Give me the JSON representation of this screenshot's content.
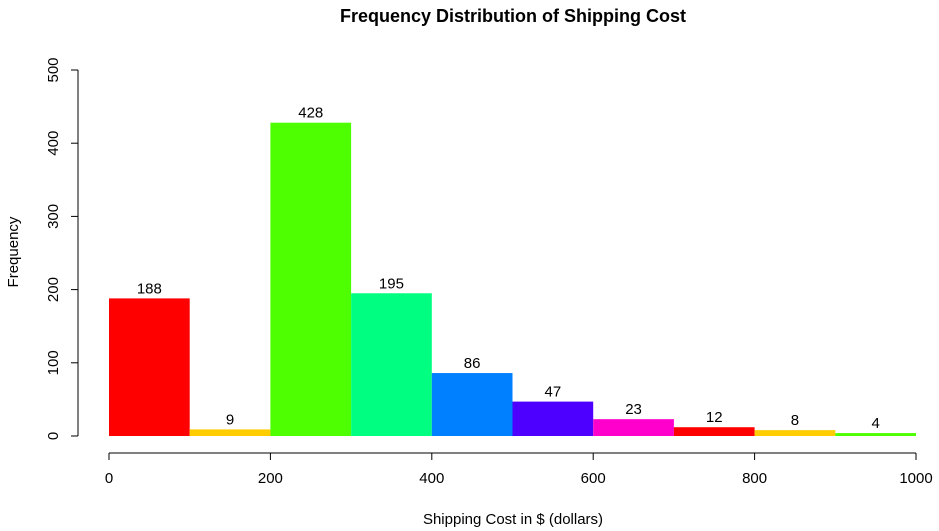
{
  "chart_data": {
    "type": "bar",
    "title": "Frequency Distribution of Shipping Cost",
    "xlabel": "Shipping Cost in $ (dollars)",
    "ylabel": "Frequency",
    "bins": [
      {
        "start": 0,
        "end": 100,
        "value": 188,
        "color": "#FF0000"
      },
      {
        "start": 100,
        "end": 200,
        "value": 9,
        "color": "#FFCC00"
      },
      {
        "start": 200,
        "end": 300,
        "value": 428,
        "color": "#4DFF00"
      },
      {
        "start": 300,
        "end": 400,
        "value": 195,
        "color": "#00FF80"
      },
      {
        "start": 400,
        "end": 500,
        "value": 86,
        "color": "#0080FF"
      },
      {
        "start": 500,
        "end": 600,
        "value": 47,
        "color": "#4D00FF"
      },
      {
        "start": 600,
        "end": 700,
        "value": 23,
        "color": "#FF00CC"
      },
      {
        "start": 700,
        "end": 800,
        "value": 12,
        "color": "#FF0000"
      },
      {
        "start": 800,
        "end": 900,
        "value": 8,
        "color": "#FFCC00"
      },
      {
        "start": 900,
        "end": 1000,
        "value": 4,
        "color": "#4DFF00"
      }
    ],
    "xlim": [
      0,
      1000
    ],
    "ylim": [
      0,
      500
    ],
    "xticks": [
      0,
      200,
      400,
      600,
      800,
      1000
    ],
    "yticks": [
      0,
      100,
      200,
      300,
      400,
      500
    ],
    "grid": false
  }
}
